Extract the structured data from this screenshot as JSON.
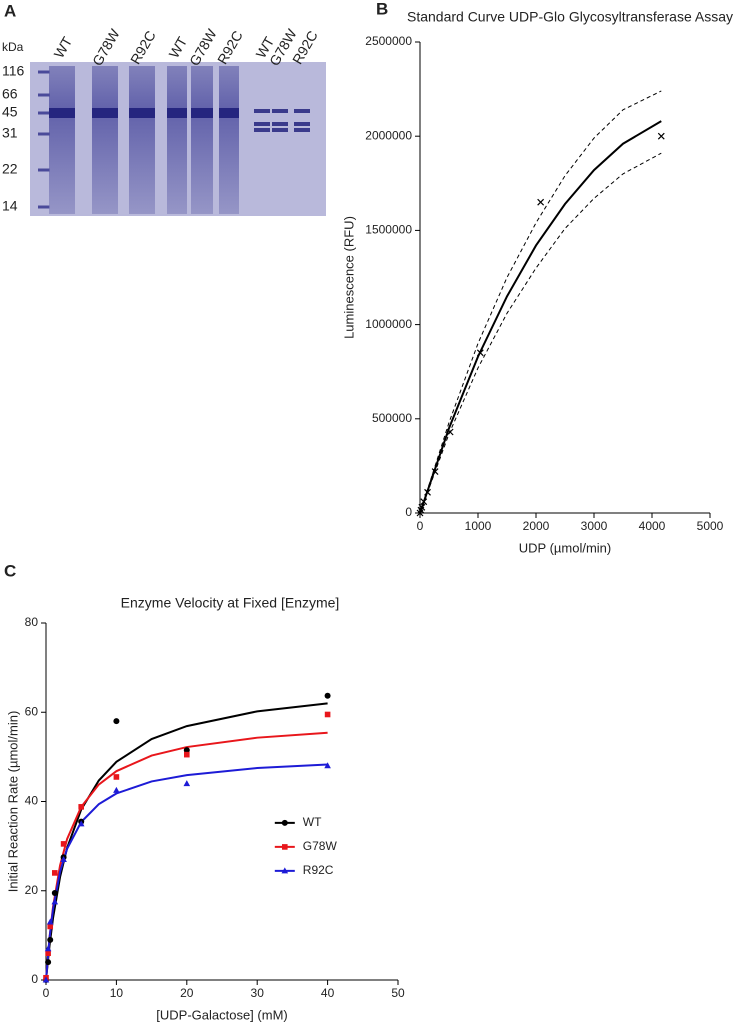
{
  "gel": {
    "panel_label": "A",
    "unit_label": "kDa",
    "markers": [
      "116",
      "66",
      "45",
      "31",
      "22",
      "14"
    ],
    "lanes": [
      "WT",
      "G78W",
      "R92C",
      "WT",
      "G78W",
      "R92C",
      "WT",
      "G78W",
      "R92C"
    ]
  },
  "chart_data": [
    {
      "type": "scatter",
      "panel_label": "B",
      "title": "Standard Curve UDP-Glo Glycosyltransferase Assay",
      "xlabel": "UDP (µmol/min)",
      "ylabel": "Luminescence (RFU)",
      "xlim": [
        0,
        5000
      ],
      "ylim": [
        0,
        2500000
      ],
      "xticks": [
        0,
        1000,
        2000,
        3000,
        4000,
        5000
      ],
      "yticks": [
        0,
        500000,
        1000000,
        1500000,
        2000000,
        2500000
      ],
      "series": [
        {
          "marker": "x",
          "color": "#000000",
          "x": [
            0,
            16,
            32,
            65,
            130,
            260,
            520,
            1040,
            2080,
            4160
          ],
          "values": [
            0,
            15000,
            30000,
            60000,
            110000,
            220000,
            430000,
            850000,
            1650000,
            2000000
          ]
        }
      ],
      "fits": [
        {
          "style": "solid",
          "color": "#000000",
          "x": [
            0,
            500,
            1000,
            1500,
            2000,
            2500,
            3000,
            3500,
            4160
          ],
          "values": [
            0,
            450000,
            830000,
            1150000,
            1420000,
            1640000,
            1820000,
            1960000,
            2080000
          ]
        },
        {
          "style": "dashed",
          "color": "#000000",
          "x": [
            0,
            500,
            1000,
            1500,
            2000,
            2500,
            3000,
            3500,
            4160
          ],
          "values": [
            0,
            480000,
            900000,
            1250000,
            1540000,
            1790000,
            1990000,
            2140000,
            2240000
          ]
        },
        {
          "style": "dashed",
          "color": "#000000",
          "x": [
            0,
            500,
            1000,
            1500,
            2000,
            2500,
            3000,
            3500,
            4160
          ],
          "values": [
            0,
            420000,
            770000,
            1060000,
            1300000,
            1510000,
            1670000,
            1800000,
            1910000
          ]
        }
      ]
    },
    {
      "type": "scatter",
      "panel_label": "C",
      "title": "Enzyme Velocity at Fixed [Enzyme]",
      "xlabel": "[UDP-Galactose] (mM)",
      "ylabel": "Initial Reaction Rate (µmol/min)",
      "xlim": [
        0,
        50
      ],
      "ylim": [
        0,
        80
      ],
      "xticks": [
        0,
        10,
        20,
        30,
        40,
        50
      ],
      "yticks": [
        0,
        20,
        40,
        60,
        80
      ],
      "legend": "right",
      "series": [
        {
          "name": "WT",
          "color": "#000000",
          "marker": "circle",
          "x": [
            0,
            0.3,
            0.6,
            1.25,
            2.5,
            5,
            10,
            20,
            40
          ],
          "values": [
            0,
            4,
            9,
            19.5,
            27.5,
            35.5,
            58,
            51.5,
            63.7
          ]
        },
        {
          "name": "G78W",
          "color": "#e8161b",
          "marker": "square",
          "x": [
            0,
            0.3,
            0.6,
            1.25,
            2.5,
            5,
            10,
            20,
            40
          ],
          "values": [
            0.5,
            6,
            12,
            24,
            30.5,
            38.8,
            45.5,
            50.5,
            59.5
          ]
        },
        {
          "name": "R92C",
          "color": "#1d1bd6",
          "marker": "triangle",
          "x": [
            0,
            0.3,
            0.6,
            1.25,
            2.5,
            5,
            10,
            20,
            40
          ],
          "values": [
            0,
            7,
            13,
            17.5,
            27,
            35,
            42.5,
            44,
            48
          ]
        }
      ],
      "fits": [
        {
          "style": "solid",
          "color": "#000000",
          "x": [
            0,
            0.5,
            1,
            2,
            3,
            5,
            7.5,
            10,
            15,
            20,
            30,
            40
          ],
          "values": [
            0,
            7.7,
            13.9,
            23.1,
            29.6,
            38.2,
            44.7,
            48.9,
            54.0,
            56.9,
            60.2,
            62.0
          ]
        },
        {
          "style": "solid",
          "color": "#e8161b",
          "x": [
            0,
            0.5,
            1,
            2,
            3,
            5,
            7.5,
            10,
            15,
            20,
            30,
            40
          ],
          "values": [
            0,
            9.5,
            16.4,
            25.7,
            31.6,
            38.8,
            43.8,
            46.8,
            50.3,
            52.2,
            54.3,
            55.4
          ]
        },
        {
          "style": "solid",
          "color": "#1d1bd6",
          "x": [
            0,
            0.5,
            1,
            2,
            3,
            5,
            7.5,
            10,
            15,
            20,
            30,
            40
          ],
          "values": [
            0,
            9.4,
            15.9,
            24.3,
            29.4,
            35.4,
            39.4,
            41.8,
            44.5,
            45.9,
            47.5,
            48.3
          ]
        }
      ]
    }
  ]
}
